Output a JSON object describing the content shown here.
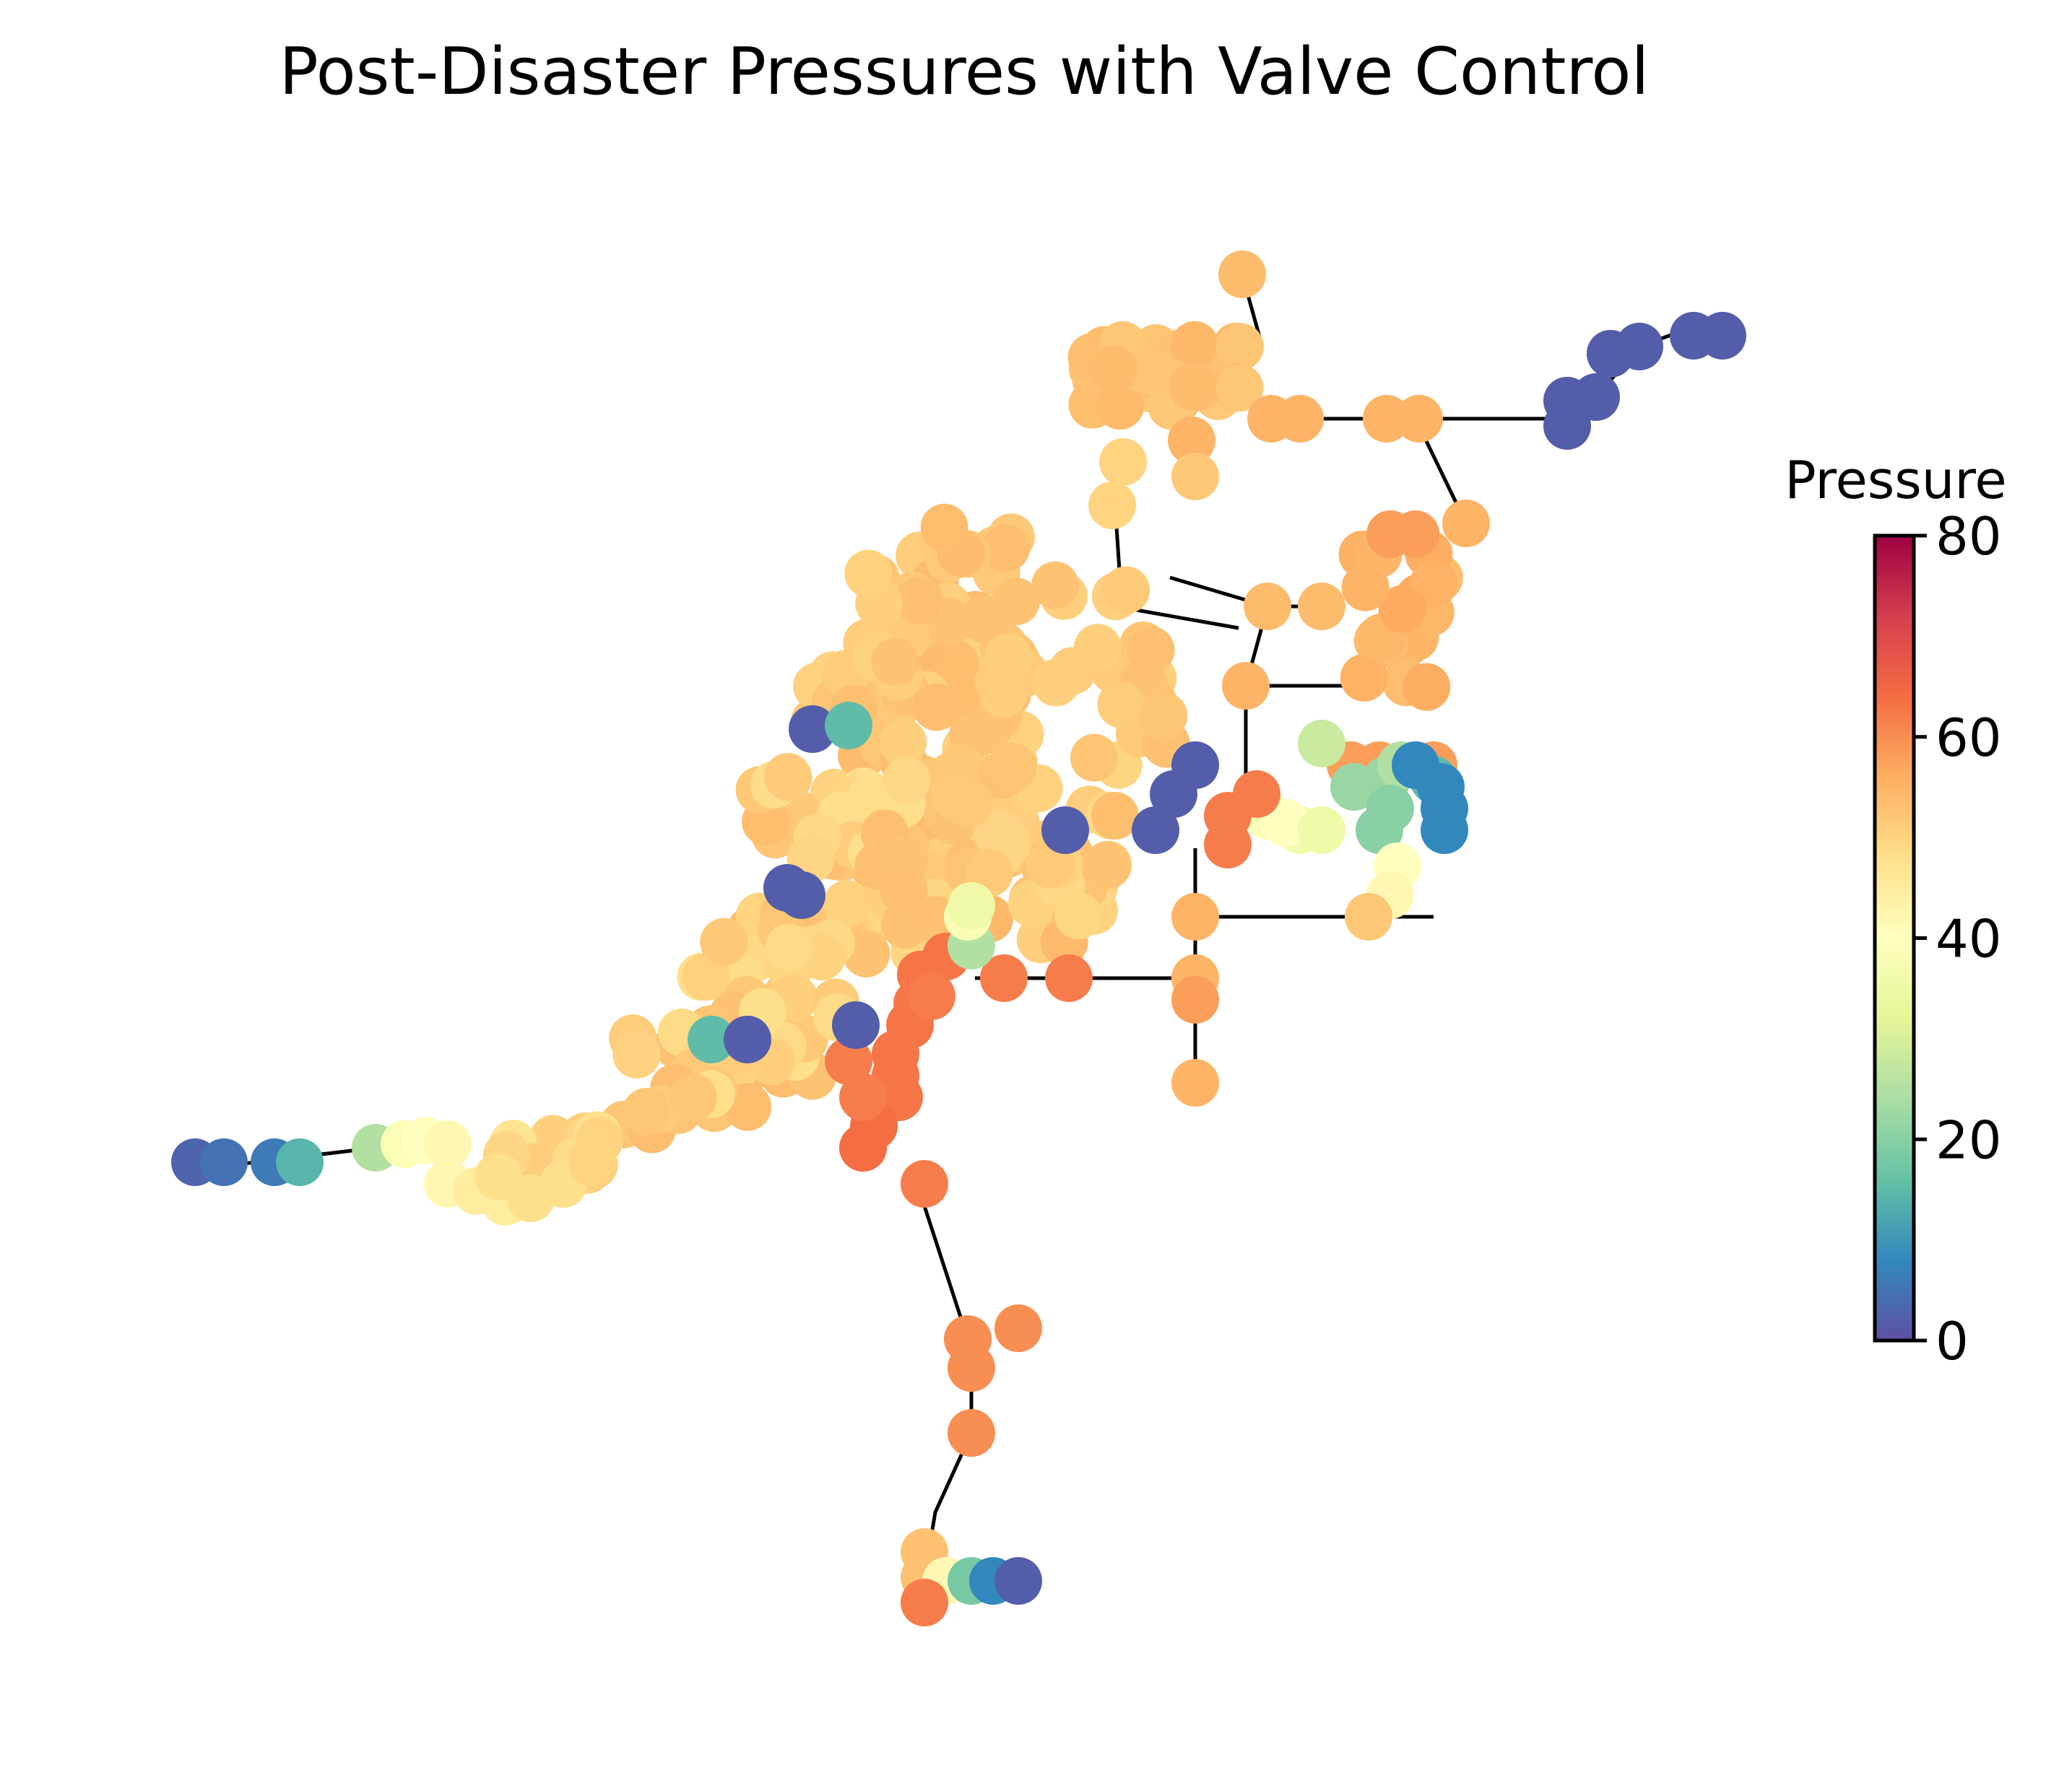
{
  "chart_data": {
    "type": "network",
    "title": "Post-Disaster Pressures with Valve Control",
    "colorbar": {
      "label": "Pressure",
      "range": [
        0,
        80
      ],
      "ticks": [
        0,
        20,
        40,
        60,
        80
      ],
      "colormap": "Spectral_r",
      "colors": [
        "#5e4fa2",
        "#3288bd",
        "#66c2a5",
        "#abdda4",
        "#e6f598",
        "#ffffbf",
        "#fee08b",
        "#fdae61",
        "#f46d43",
        "#d53e4f",
        "#9e0142"
      ]
    }
  }
}
